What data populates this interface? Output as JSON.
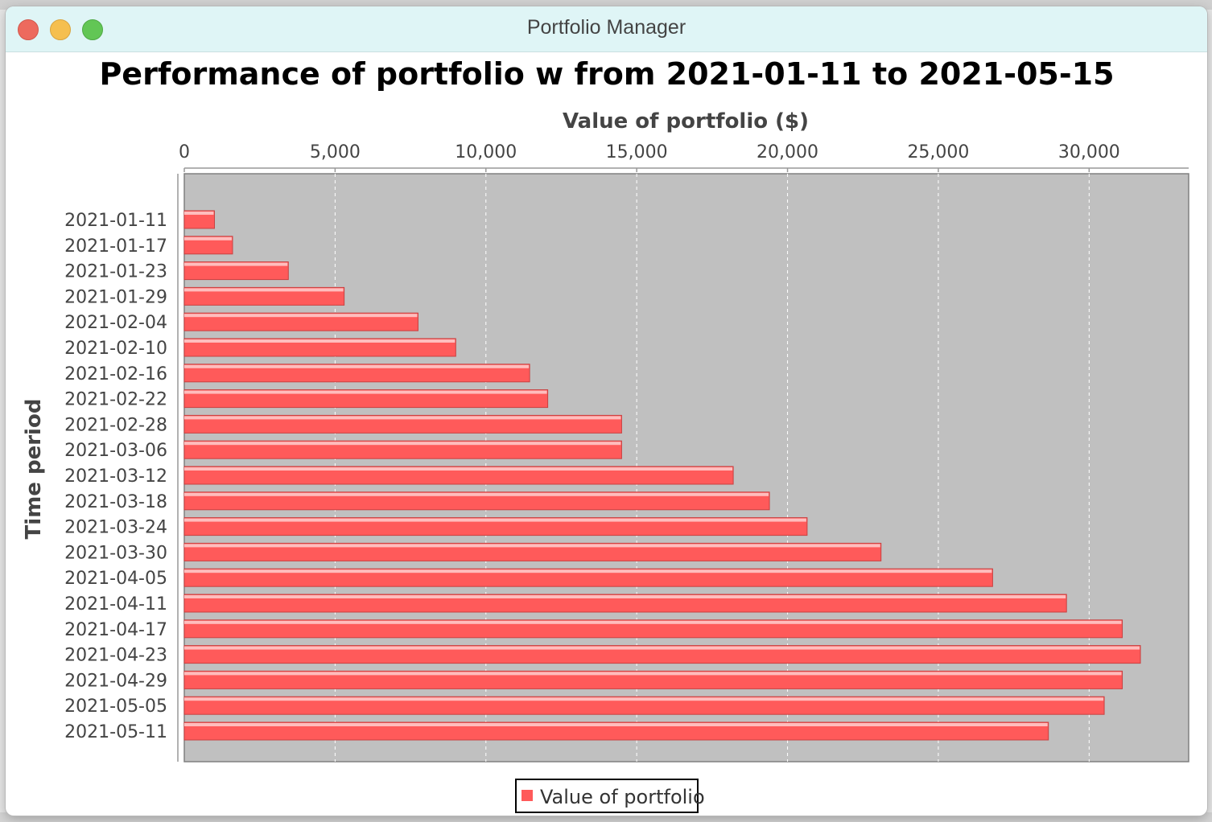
{
  "window": {
    "title": "Portfolio Manager"
  },
  "chart_data": {
    "type": "bar",
    "orientation": "horizontal",
    "title": "Performance of portfolio w from 2021-01-11 to 2021-05-15",
    "xlabel": "Value of portfolio ($)",
    "ylabel": "Time period",
    "xlim": [
      0,
      33300
    ],
    "x_ticks": [
      0,
      5000,
      10000,
      15000,
      20000,
      25000,
      30000
    ],
    "x_tick_labels": [
      "0",
      "5,000",
      "10,000",
      "15,000",
      "20,000",
      "25,000",
      "30,000"
    ],
    "x_axis_position": "top",
    "grid": true,
    "legend_position": "bottom-center",
    "bar_color": "#ff5a5a",
    "plot_background": "#c0c0c0",
    "categories": [
      "2021-01-11",
      "2021-01-17",
      "2021-01-23",
      "2021-01-29",
      "2021-02-04",
      "2021-02-10",
      "2021-02-16",
      "2021-02-22",
      "2021-02-28",
      "2021-03-06",
      "2021-03-12",
      "2021-03-18",
      "2021-03-24",
      "2021-03-30",
      "2021-04-05",
      "2021-04-11",
      "2021-04-17",
      "2021-04-23",
      "2021-04-29",
      "2021-05-05",
      "2021-05-11"
    ],
    "series": [
      {
        "name": "Value of portfolio",
        "values": [
          1000,
          1600,
          3450,
          5300,
          7750,
          9000,
          11450,
          12050,
          14500,
          14500,
          18200,
          19400,
          20650,
          23100,
          26800,
          29250,
          31100,
          31700,
          31100,
          30500,
          28650
        ]
      }
    ]
  }
}
